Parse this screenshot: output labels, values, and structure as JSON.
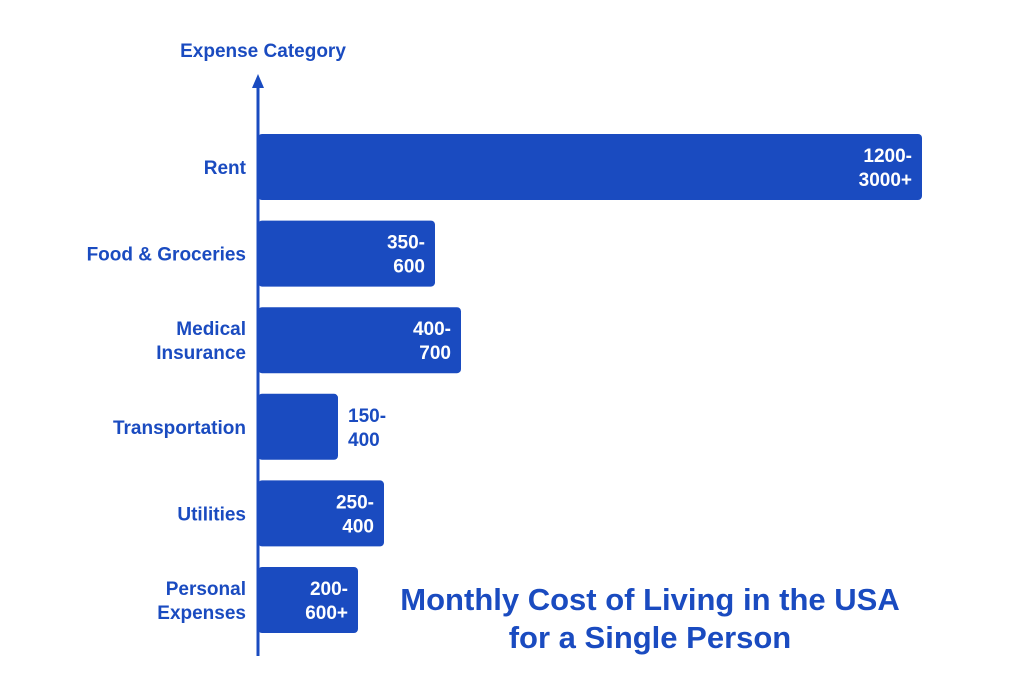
{
  "chart_data": {
    "type": "bar",
    "orientation": "horizontal",
    "title": "Monthly Cost of Living in the USA for a Single Person",
    "title_lines": [
      "Monthly Cost of Living in the USA",
      "for a Single Person"
    ],
    "ylabel": "Expense Category",
    "xlabel": "",
    "grid": false,
    "color": "#1a4bc0",
    "categories": [
      {
        "lines": [
          "Rent"
        ]
      },
      {
        "lines": [
          "Food & Groceries"
        ]
      },
      {
        "lines": [
          "Medical",
          "Insurance"
        ]
      },
      {
        "lines": [
          "Transportation"
        ]
      },
      {
        "lines": [
          "Utilities"
        ]
      },
      {
        "lines": [
          "Personal",
          "Expenses"
        ]
      }
    ],
    "values": [
      {
        "min": 1200,
        "max": 3000,
        "label_lines": [
          "1200-",
          "3000+"
        ]
      },
      {
        "min": 350,
        "max": 600,
        "label_lines": [
          "350-",
          "600"
        ]
      },
      {
        "min": 400,
        "max": 700,
        "label_lines": [
          "400-",
          "700"
        ]
      },
      {
        "min": 150,
        "max": 400,
        "label_lines": [
          "150-",
          "400"
        ]
      },
      {
        "min": 250,
        "max": 400,
        "label_lines": [
          "250-",
          "400"
        ]
      },
      {
        "min": 200,
        "max": 600,
        "label_lines": [
          "200-",
          "600+"
        ]
      }
    ]
  }
}
